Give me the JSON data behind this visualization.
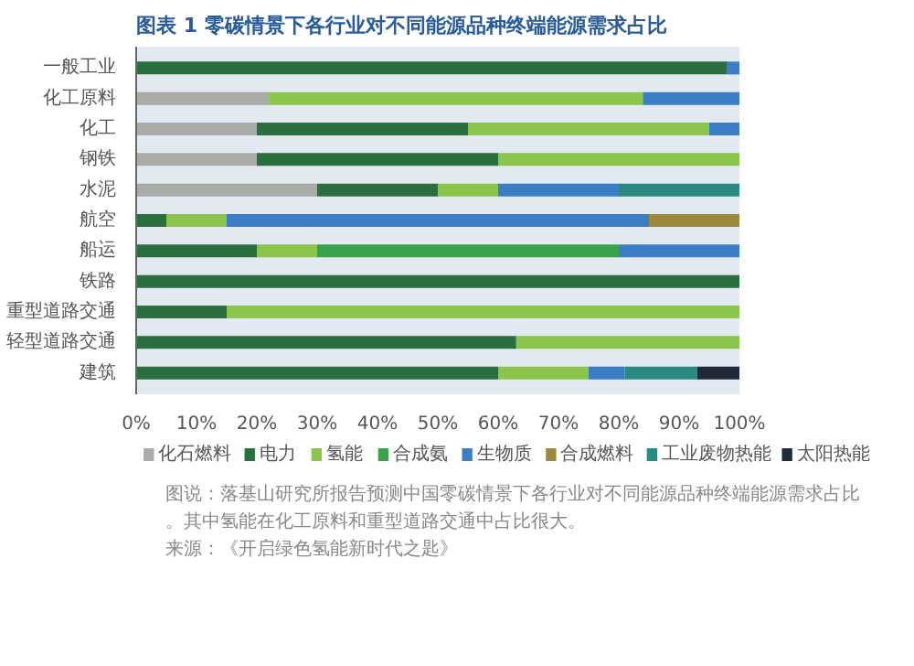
{
  "chart_data": {
    "type": "bar",
    "orientation": "horizontal",
    "stacked": true,
    "title": "图表 1  零碳情景下各行业对不同能源品种终端能源需求占比",
    "categories": [
      "一般工业",
      "化工原料",
      "化工",
      "钢铁",
      "水泥",
      "航空",
      "船运",
      "铁路",
      "重型道路交通",
      "轻型道路交通",
      "建筑"
    ],
    "series": [
      {
        "name": "化石燃料",
        "color": "#a9aba7",
        "values": [
          null,
          22,
          20,
          20,
          30,
          null,
          null,
          null,
          null,
          null,
          null
        ]
      },
      {
        "name": "电力",
        "color": "#2b6e40",
        "values": [
          98,
          null,
          35,
          40,
          20,
          5,
          20,
          100,
          15,
          63,
          60
        ]
      },
      {
        "name": "氢能",
        "color": "#8cc54c",
        "values": [
          null,
          62,
          40,
          40,
          10,
          10,
          10,
          null,
          85,
          37,
          15
        ]
      },
      {
        "name": "合成氨",
        "color": "#3ba24b",
        "values": [
          null,
          null,
          null,
          null,
          null,
          null,
          50,
          null,
          null,
          null,
          null
        ]
      },
      {
        "name": "生物质",
        "color": "#3b7ec4",
        "values": [
          2,
          16,
          5,
          null,
          20,
          70,
          20,
          null,
          null,
          null,
          6
        ]
      },
      {
        "name": "合成燃料",
        "color": "#9c8a3c",
        "values": [
          null,
          null,
          null,
          null,
          null,
          15,
          null,
          null,
          null,
          null,
          null
        ]
      },
      {
        "name": "工业废物热能",
        "color": "#2a8a80",
        "values": [
          null,
          null,
          null,
          null,
          20,
          null,
          null,
          null,
          null,
          null,
          12
        ]
      },
      {
        "name": "太阳热能",
        "color": "#1e2a3a",
        "values": [
          null,
          null,
          null,
          null,
          null,
          null,
          null,
          null,
          null,
          null,
          7
        ]
      }
    ],
    "xlim": [
      0,
      100
    ],
    "xticks": [
      {
        "value": 0,
        "label": "0%"
      },
      {
        "value": 10,
        "label": "10%"
      },
      {
        "value": 20,
        "label": "20%"
      },
      {
        "value": 30,
        "label": "30%"
      },
      {
        "value": 40,
        "label": "40%"
      },
      {
        "value": 50,
        "label": "50%"
      },
      {
        "value": 60,
        "label": "60%"
      },
      {
        "value": 70,
        "label": "70%"
      },
      {
        "value": 80,
        "label": "80%"
      },
      {
        "value": 90,
        "label": "90%"
      },
      {
        "value": 100,
        "label": "100%"
      }
    ],
    "legend": "bottom",
    "annotations": [
      "图说：落基山研究所报告预测中国零碳情景下各行业对不同能源品种终端能源需求占比。其中氢能在化工原料和重型道路交通中占比很大。",
      "来源：《开启绿色氢能新时代之匙》"
    ]
  }
}
